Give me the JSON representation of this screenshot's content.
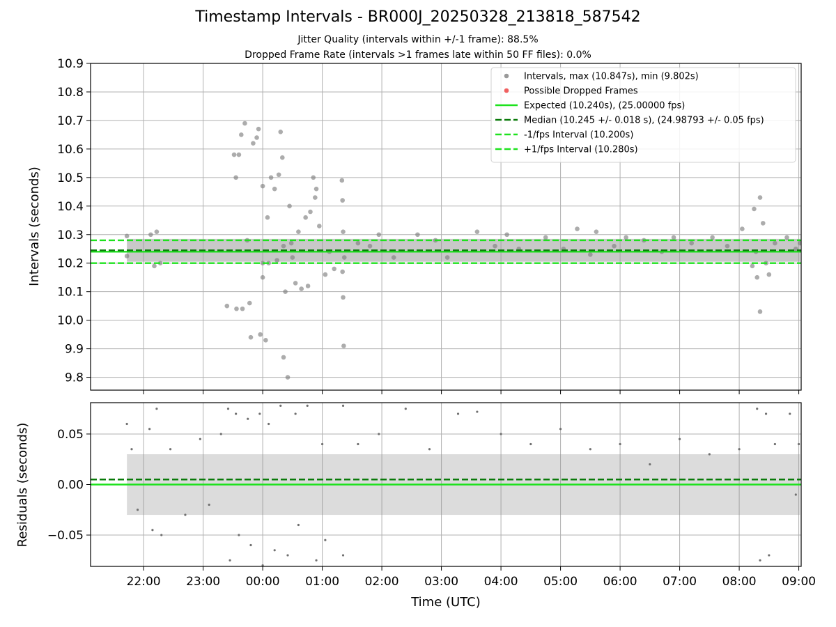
{
  "chart_data": [
    {
      "type": "scatter",
      "title": "Timestamp Intervals - BR000J_20250328_213818_587542",
      "subtitle_lines": [
        "Jitter Quality (intervals within +/-1 frame): 88.5%",
        "Dropped Frame Rate (intervals >1 frames late within 50 FF files): 0.0%"
      ],
      "ylabel": "Intervals (seconds)",
      "xlabel": "",
      "ylim": [
        9.755,
        10.9
      ],
      "xlim_hours_utc": [
        21.11,
        33.04
      ],
      "yticks": [
        9.8,
        9.9,
        10.0,
        10.1,
        10.2,
        10.3,
        10.4,
        10.5,
        10.6,
        10.7,
        10.8,
        10.9
      ],
      "ytick_labels": [
        "9.8",
        "9.9",
        "10.0",
        "10.1",
        "10.2",
        "10.3",
        "10.4",
        "10.5",
        "10.6",
        "10.7",
        "10.8",
        "10.9"
      ],
      "grid": true,
      "legend_position": "top-right",
      "legend": [
        {
          "label": "Intervals, max (10.847s), min (9.802s)",
          "marker": "dot",
          "color": "#999999"
        },
        {
          "label": "Possible Dropped Frames",
          "marker": "dot",
          "color": "#f06060"
        },
        {
          "label": "Expected (10.240s), (25.00000 fps)",
          "marker": "solid",
          "color": "#1de21d"
        },
        {
          "label": "Median (10.245 +/- 0.018 s), (24.98793 +/- 0.05 fps)",
          "marker": "dashed",
          "color": "#0a7a0a"
        },
        {
          "label": "-1/fps Interval (10.200s)",
          "marker": "dashed",
          "color": "#1de21d"
        },
        {
          "label": "+1/fps Interval (10.280s)",
          "marker": "dashed",
          "color": "#1de21d"
        }
      ],
      "reference_lines": [
        {
          "name": "expected",
          "y": 10.24,
          "style": "solid",
          "color": "#1de21d"
        },
        {
          "name": "median",
          "y": 10.245,
          "style": "dashed",
          "color": "#0a7a0a"
        },
        {
          "name": "minus-1-fps",
          "y": 10.2,
          "style": "dashed",
          "color": "#1de21d"
        },
        {
          "name": "plus-1-fps",
          "y": 10.28,
          "style": "dashed",
          "color": "#1de21d"
        }
      ],
      "series": [
        {
          "color": "#808080",
          "points": [
            [
              21.72,
              10.295
            ],
            [
              21.72,
              10.225
            ],
            [
              22.12,
              10.3
            ],
            [
              22.18,
              10.19
            ],
            [
              22.22,
              10.31
            ],
            [
              22.28,
              10.2
            ],
            [
              23.4,
              10.05
            ],
            [
              23.52,
              10.58
            ],
            [
              23.55,
              10.5
            ],
            [
              23.56,
              10.04
            ],
            [
              23.6,
              10.58
            ],
            [
              23.64,
              10.65
            ],
            [
              23.66,
              10.04
            ],
            [
              23.7,
              10.69
            ],
            [
              23.74,
              10.28
            ],
            [
              23.78,
              10.06
            ],
            [
              23.8,
              9.94
            ],
            [
              23.84,
              10.62
            ],
            [
              23.9,
              10.64
            ],
            [
              23.93,
              10.67
            ],
            [
              23.96,
              9.95
            ],
            [
              24.0,
              10.47
            ],
            [
              24.0,
              10.2
            ],
            [
              24.0,
              10.15
            ],
            [
              24.05,
              9.93
            ],
            [
              24.08,
              10.36
            ],
            [
              24.1,
              10.2
            ],
            [
              24.14,
              10.5
            ],
            [
              24.2,
              10.46
            ],
            [
              24.24,
              10.21
            ],
            [
              24.27,
              10.51
            ],
            [
              24.3,
              10.66
            ],
            [
              24.33,
              10.57
            ],
            [
              24.35,
              10.26
            ],
            [
              24.35,
              9.87
            ],
            [
              24.38,
              10.1
            ],
            [
              24.42,
              9.8
            ],
            [
              24.45,
              10.4
            ],
            [
              24.48,
              10.27
            ],
            [
              24.5,
              10.22
            ],
            [
              24.55,
              10.13
            ],
            [
              24.6,
              10.31
            ],
            [
              24.65,
              10.11
            ],
            [
              24.72,
              10.36
            ],
            [
              24.76,
              10.12
            ],
            [
              24.8,
              10.38
            ],
            [
              24.85,
              10.5
            ],
            [
              24.88,
              10.43
            ],
            [
              24.9,
              10.46
            ],
            [
              24.95,
              10.33
            ],
            [
              25.05,
              10.16
            ],
            [
              25.12,
              10.24
            ],
            [
              25.2,
              10.18
            ],
            [
              25.33,
              10.49
            ],
            [
              25.34,
              10.42
            ],
            [
              25.34,
              10.17
            ],
            [
              25.35,
              10.31
            ],
            [
              25.35,
              10.08
            ],
            [
              25.36,
              9.91
            ],
            [
              25.37,
              10.22
            ],
            [
              25.6,
              10.27
            ],
            [
              25.8,
              10.26
            ],
            [
              25.95,
              10.3
            ],
            [
              26.2,
              10.22
            ],
            [
              26.6,
              10.3
            ],
            [
              26.9,
              10.28
            ],
            [
              27.1,
              10.22
            ],
            [
              27.6,
              10.31
            ],
            [
              27.9,
              10.26
            ],
            [
              28.1,
              10.3
            ],
            [
              28.3,
              10.25
            ],
            [
              28.75,
              10.29
            ],
            [
              29.05,
              10.25
            ],
            [
              29.28,
              10.32
            ],
            [
              29.5,
              10.23
            ],
            [
              29.6,
              10.31
            ],
            [
              29.9,
              10.26
            ],
            [
              30.1,
              10.29
            ],
            [
              30.4,
              10.28
            ],
            [
              30.7,
              10.24
            ],
            [
              30.9,
              10.29
            ],
            [
              31.2,
              10.27
            ],
            [
              31.55,
              10.29
            ],
            [
              31.8,
              10.26
            ],
            [
              32.05,
              10.32
            ],
            [
              32.22,
              10.19
            ],
            [
              32.25,
              10.39
            ],
            [
              32.28,
              10.24
            ],
            [
              32.3,
              10.15
            ],
            [
              32.35,
              10.43
            ],
            [
              32.35,
              10.03
            ],
            [
              32.4,
              10.34
            ],
            [
              32.45,
              10.2
            ],
            [
              32.5,
              10.16
            ],
            [
              32.6,
              10.27
            ],
            [
              32.8,
              10.29
            ],
            [
              32.95,
              10.25
            ],
            [
              33.02,
              10.27
            ]
          ]
        }
      ]
    },
    {
      "type": "scatter",
      "title": "",
      "ylabel": "Residuals (seconds)",
      "xlabel": "Time (UTC)",
      "ylim": [
        -0.081,
        0.081
      ],
      "xlim_hours_utc": [
        21.11,
        33.04
      ],
      "yticks": [
        -0.05,
        0.0,
        0.05
      ],
      "ytick_labels": [
        "−0.05",
        "0.00",
        "0.05"
      ],
      "xticks": [
        22,
        23,
        24,
        25,
        26,
        27,
        28,
        29,
        30,
        31,
        32,
        33
      ],
      "xtick_labels": [
        "22:00",
        "23:00",
        "00:00",
        "01:00",
        "02:00",
        "03:00",
        "04:00",
        "05:00",
        "06:00",
        "07:00",
        "08:00",
        "09:00"
      ],
      "grid": true,
      "reference_lines": [
        {
          "name": "zero",
          "y": 0.0,
          "style": "solid",
          "color": "#1de21d"
        },
        {
          "name": "median-offset",
          "y": 0.005,
          "style": "dashed",
          "color": "#0a7a0a"
        }
      ],
      "series": [
        {
          "color": "#707070",
          "points": [
            [
              21.72,
              0.06
            ],
            [
              21.8,
              0.035
            ],
            [
              21.9,
              -0.025
            ],
            [
              22.1,
              0.055
            ],
            [
              22.15,
              -0.045
            ],
            [
              22.22,
              0.075
            ],
            [
              22.3,
              -0.05
            ],
            [
              22.45,
              0.035
            ],
            [
              22.7,
              -0.03
            ],
            [
              22.95,
              0.045
            ],
            [
              23.1,
              -0.02
            ],
            [
              23.3,
              0.05
            ],
            [
              23.42,
              0.075
            ],
            [
              23.45,
              -0.075
            ],
            [
              23.55,
              0.07
            ],
            [
              23.6,
              -0.05
            ],
            [
              23.75,
              0.065
            ],
            [
              23.8,
              -0.06
            ],
            [
              23.95,
              0.07
            ],
            [
              24.0,
              -0.08
            ],
            [
              24.1,
              0.06
            ],
            [
              24.2,
              -0.065
            ],
            [
              24.3,
              0.078
            ],
            [
              24.42,
              -0.07
            ],
            [
              24.55,
              0.07
            ],
            [
              24.6,
              -0.04
            ],
            [
              24.75,
              0.078
            ],
            [
              24.9,
              -0.075
            ],
            [
              25.0,
              0.04
            ],
            [
              25.05,
              -0.055
            ],
            [
              25.35,
              0.078
            ],
            [
              25.35,
              -0.07
            ],
            [
              25.6,
              0.04
            ],
            [
              25.95,
              0.05
            ],
            [
              26.4,
              0.075
            ],
            [
              26.8,
              0.035
            ],
            [
              27.28,
              0.07
            ],
            [
              27.6,
              0.072
            ],
            [
              28.0,
              0.05
            ],
            [
              28.5,
              0.04
            ],
            [
              29.0,
              0.055
            ],
            [
              29.5,
              0.035
            ],
            [
              30.0,
              0.04
            ],
            [
              30.5,
              0.02
            ],
            [
              31.0,
              0.045
            ],
            [
              31.5,
              0.03
            ],
            [
              32.0,
              0.035
            ],
            [
              32.3,
              0.075
            ],
            [
              32.35,
              -0.075
            ],
            [
              32.45,
              0.07
            ],
            [
              32.5,
              -0.07
            ],
            [
              32.6,
              0.04
            ],
            [
              32.85,
              0.07
            ],
            [
              32.95,
              -0.01
            ],
            [
              33.0,
              0.04
            ]
          ]
        }
      ]
    }
  ]
}
